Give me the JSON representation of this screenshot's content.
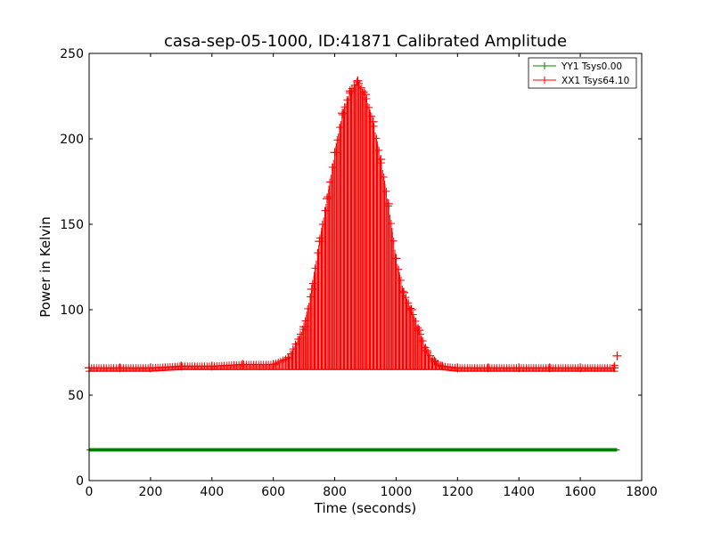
{
  "chart_data": {
    "type": "line",
    "title": "casa-sep-05-1000, ID:41871 Calibrated Amplitude",
    "xlabel": "Time (seconds)",
    "ylabel": "Power in Kelvin",
    "xlim": [
      0,
      1800
    ],
    "ylim": [
      0,
      250
    ],
    "xticks": [
      "0",
      "200",
      "400",
      "600",
      "800",
      "1000",
      "1200",
      "1400",
      "1600",
      "1800"
    ],
    "yticks": [
      "0",
      "50",
      "100",
      "150",
      "200",
      "250"
    ],
    "grid": false,
    "legend_position": "top-right",
    "series": [
      {
        "name": "YY1 Tsys0.00",
        "color": "#008000",
        "marker": "+",
        "x_range": [
          0,
          1720
        ],
        "values": {
          "x": [
            0,
            1720
          ],
          "y": [
            18,
            18
          ]
        },
        "error_range": [
          17,
          19
        ]
      },
      {
        "name": "XX1 Tsys64.10",
        "color": "#ff0000",
        "marker": "+",
        "error_bars": true,
        "x": [
          0,
          100,
          200,
          300,
          400,
          500,
          600,
          650,
          700,
          725,
          750,
          775,
          800,
          825,
          850,
          875,
          900,
          925,
          950,
          975,
          1000,
          1025,
          1050,
          1075,
          1100,
          1125,
          1150,
          1200,
          1300,
          1400,
          1500,
          1600,
          1710,
          1720
        ],
        "y": [
          66,
          66,
          66,
          67,
          67,
          68,
          68,
          72,
          90,
          112,
          140,
          165,
          192,
          215,
          228,
          234,
          226,
          210,
          188,
          162,
          130,
          110,
          100,
          88,
          76,
          70,
          67,
          66,
          66,
          66,
          66,
          66,
          66,
          73
        ],
        "error_low": [
          64,
          64,
          64,
          65,
          65,
          65,
          65,
          65,
          65,
          65,
          65,
          65,
          65,
          65,
          65,
          65,
          65,
          65,
          65,
          65,
          65,
          65,
          65,
          65,
          65,
          65,
          65,
          64,
          64,
          64,
          64,
          64,
          64,
          64
        ]
      }
    ]
  }
}
